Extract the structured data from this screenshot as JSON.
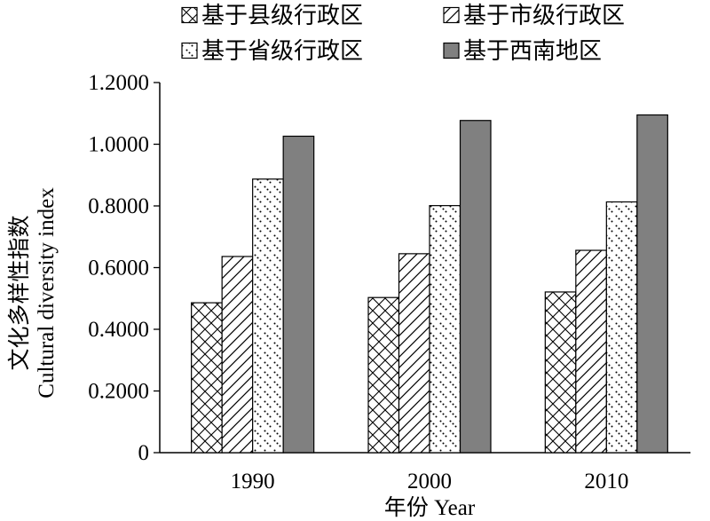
{
  "chart_data": {
    "type": "bar",
    "categories": [
      "1990",
      "2000",
      "2010"
    ],
    "series": [
      {
        "name": "基于县级行政区",
        "values": [
          0.486,
          0.503,
          0.521
        ],
        "pattern": "crosshatch"
      },
      {
        "name": "基于市级行政区",
        "values": [
          0.636,
          0.645,
          0.656
        ],
        "pattern": "diagonal"
      },
      {
        "name": "基于省级行政区",
        "values": [
          0.887,
          0.801,
          0.813
        ],
        "pattern": "dotted-diagonal"
      },
      {
        "name": "基于西南地区",
        "values": [
          1.026,
          1.077,
          1.095
        ],
        "pattern": "solid",
        "color": "#808080"
      }
    ],
    "ylim": [
      0,
      1.2
    ],
    "yticks": [
      0,
      0.2,
      0.4,
      0.6,
      0.8,
      1.0,
      1.2
    ],
    "ytick_labels": [
      "0",
      "0.2000",
      "0.4000",
      "0.6000",
      "0.8000",
      "1.0000",
      "1.2000"
    ],
    "xlabel": "年份 Year",
    "ylabel_cn": "文化多样性指数",
    "ylabel_en": "Cultural diversity index",
    "title": "",
    "legend_position": "top",
    "grid": false
  }
}
